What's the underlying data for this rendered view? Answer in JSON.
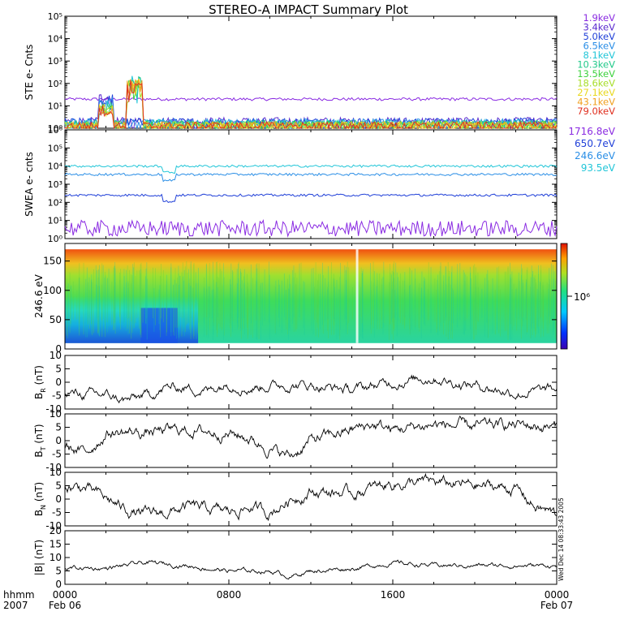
{
  "title": "STEREO-A IMPACT Summary Plot",
  "footer": {
    "time_label_1": "hhmm",
    "time_label_2": "2007",
    "x_ticks": [
      "0000",
      "0800",
      "1600",
      "0000"
    ],
    "date_start": "Feb 06",
    "date_end": "Feb 07",
    "side_note": "Wed Dec 14 08:33:43 2005"
  },
  "chart_data": [
    {
      "id": "ste",
      "type": "line",
      "ylabel": "STE e- Cnts",
      "yscale": "log",
      "ylim": [
        1,
        100000
      ],
      "yticks": [
        "10⁰",
        "10¹",
        "10²",
        "10³",
        "10⁴",
        "10⁵"
      ],
      "x_range_hours": [
        0,
        24
      ],
      "series": [
        {
          "name": "1.9keV",
          "color": "#8a2be2",
          "level": 20
        },
        {
          "name": "3.4keV",
          "color": "#5b2bcf",
          "level": 1.6
        },
        {
          "name": "5.0keV",
          "color": "#1f3fd8",
          "level": 1.5
        },
        {
          "name": "6.5keV",
          "color": "#2a8ee6",
          "level": 1.4
        },
        {
          "name": "8.1keV",
          "color": "#22c6d8",
          "level": 1.3
        },
        {
          "name": "10.3keV",
          "color": "#22c98a",
          "level": 1.2
        },
        {
          "name": "13.5keV",
          "color": "#3fd23f",
          "level": 1.1
        },
        {
          "name": "18.6keV",
          "color": "#a8de2a",
          "level": 1.05
        },
        {
          "name": "27.1keV",
          "color": "#e8d820",
          "level": 1.02
        },
        {
          "name": "43.1keV",
          "color": "#f0a020",
          "level": 1.01
        },
        {
          "name": "79.0keV",
          "color": "#e03020",
          "level": 1.0
        }
      ]
    },
    {
      "id": "swea",
      "type": "line",
      "ylabel": "SWEA e- cnts",
      "yscale": "log",
      "ylim": [
        1,
        1000000
      ],
      "yticks": [
        "10⁰",
        "10¹",
        "10²",
        "10³",
        "10⁴",
        "10⁵",
        "10⁶"
      ],
      "x_range_hours": [
        0,
        24
      ],
      "series": [
        {
          "name": "1716.8eV",
          "color": "#8a2be2",
          "level": 4
        },
        {
          "name": "650.7eV",
          "color": "#1f3fd8",
          "level": 250
        },
        {
          "name": "246.6eV",
          "color": "#2a8ee6",
          "level": 3500
        },
        {
          "name": "93.5eV",
          "color": "#22c6d8",
          "level": 10000
        }
      ]
    },
    {
      "id": "pad",
      "type": "heatmap",
      "ylabel": "246.6 eV",
      "ylim": [
        0,
        180
      ],
      "yticks": [
        "0",
        "50",
        "100",
        "150"
      ],
      "x_range_hours": [
        0,
        24
      ],
      "colorbar_label": "10⁶"
    },
    {
      "id": "br",
      "type": "line",
      "ylabel": "B_R (nT)",
      "ylabel_main": "B",
      "ylabel_sub": "R",
      "ylabel_unit": "(nT)",
      "ylim": [
        -10,
        10
      ],
      "yticks": [
        "-10",
        "-5",
        "0",
        "5",
        "10"
      ],
      "x_range_hours": [
        0,
        24
      ],
      "knots_hours": [
        0,
        2,
        3,
        4,
        5,
        6,
        7,
        8,
        9,
        10,
        12,
        14,
        16,
        18,
        19,
        20,
        22,
        24
      ],
      "knots_values": [
        -4,
        -5,
        -7,
        -5,
        -2,
        -2,
        -3,
        0,
        -2,
        -1,
        -1,
        -3,
        0,
        2,
        0,
        -1,
        -4,
        -3
      ]
    },
    {
      "id": "bt",
      "type": "line",
      "ylabel": "B_T (nT)",
      "ylabel_main": "B",
      "ylabel_sub": "T",
      "ylabel_unit": "(nT)",
      "ylim": [
        -10,
        10
      ],
      "yticks": [
        "-10",
        "-5",
        "0",
        "5",
        "10"
      ],
      "x_range_hours": [
        0,
        24
      ],
      "knots_hours": [
        0,
        1,
        2,
        4,
        6,
        8,
        9,
        10,
        11,
        12,
        14,
        15,
        16,
        18,
        20,
        22,
        24
      ],
      "knots_values": [
        -2,
        -5,
        3,
        3,
        4,
        3,
        1,
        -3,
        -6,
        0,
        4,
        6,
        4,
        6,
        5,
        6,
        5
      ]
    },
    {
      "id": "bn",
      "type": "line",
      "ylabel": "B_N (nT)",
      "ylabel_main": "B",
      "ylabel_sub": "N",
      "ylabel_unit": "(nT)",
      "ylim": [
        -10,
        10
      ],
      "yticks": [
        "-10",
        "-5",
        "0",
        "5",
        "10"
      ],
      "x_range_hours": [
        0,
        24
      ],
      "knots_hours": [
        0,
        1,
        2,
        3,
        4,
        5,
        6,
        7,
        8,
        9,
        10,
        11,
        12,
        14,
        16,
        18,
        20,
        22,
        23,
        24
      ],
      "knots_values": [
        5,
        4,
        0,
        -4,
        -6,
        -5,
        -3,
        -4,
        -5,
        -3,
        -5,
        0,
        3,
        2,
        6,
        6,
        5,
        4,
        -3,
        -6
      ]
    },
    {
      "id": "bmag",
      "type": "line",
      "ylabel": "|B| (nT)",
      "ylim": [
        0,
        20
      ],
      "yticks": [
        "0",
        "5",
        "10",
        "15",
        "20"
      ],
      "x_range_hours": [
        0,
        24
      ],
      "knots_hours": [
        0,
        2,
        4,
        6,
        8,
        10,
        11,
        12,
        14,
        16,
        18,
        20,
        22,
        24
      ],
      "knots_values": [
        6,
        6,
        8,
        7,
        5,
        5,
        3,
        5,
        6,
        8,
        7,
        7,
        7,
        7
      ]
    }
  ]
}
